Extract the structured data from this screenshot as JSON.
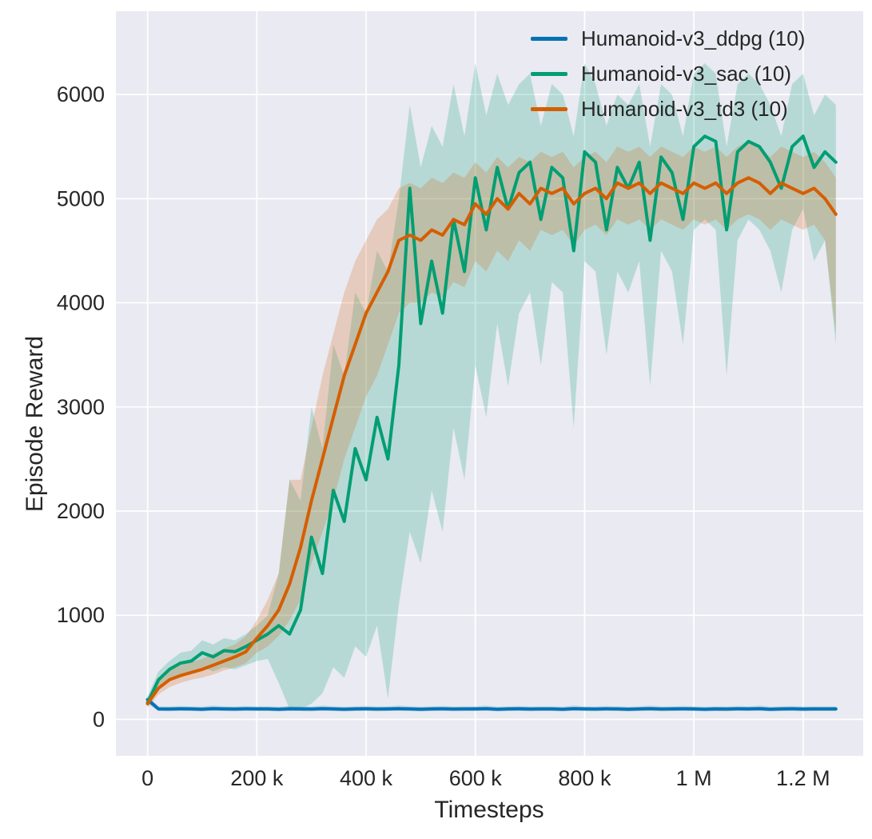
{
  "chart_data": {
    "type": "line",
    "title": "",
    "xlabel": "Timesteps",
    "ylabel": "Episode Reward",
    "xlim": [
      -58000,
      1310000
    ],
    "ylim": [
      -350,
      6800
    ],
    "background": "#eaeaf2",
    "grid_color": "#ffffff",
    "text_color": "#262626",
    "grid": true,
    "legend_position": "upper right",
    "xticks": {
      "values": [
        0,
        200000,
        400000,
        600000,
        800000,
        1000000,
        1200000
      ],
      "labels": [
        "0",
        "200 k",
        "400 k",
        "600 k",
        "800 k",
        "1 M",
        "1.2 M"
      ]
    },
    "yticks": {
      "values": [
        0,
        1000,
        2000,
        3000,
        4000,
        5000,
        6000
      ],
      "labels": [
        "0",
        "1000",
        "2000",
        "3000",
        "4000",
        "5000",
        "6000"
      ]
    },
    "x": [
      0,
      20000,
      40000,
      60000,
      80000,
      100000,
      120000,
      140000,
      160000,
      180000,
      200000,
      220000,
      240000,
      260000,
      280000,
      300000,
      320000,
      340000,
      360000,
      380000,
      400000,
      420000,
      440000,
      460000,
      480000,
      500000,
      520000,
      540000,
      560000,
      580000,
      600000,
      620000,
      640000,
      660000,
      680000,
      700000,
      720000,
      740000,
      760000,
      780000,
      800000,
      820000,
      840000,
      860000,
      880000,
      900000,
      920000,
      940000,
      960000,
      980000,
      1000000,
      1020000,
      1040000,
      1060000,
      1080000,
      1100000,
      1120000,
      1140000,
      1160000,
      1180000,
      1200000,
      1220000,
      1240000,
      1260000
    ],
    "series": [
      {
        "key": "ddpg",
        "label": "Humanoid-v3_ddpg (10)",
        "color": "#0173b2",
        "mean": [
          190,
          100,
          99,
          101,
          100,
          98,
          102,
          100,
          99,
          101,
          100,
          100,
          98,
          101,
          100,
          99,
          102,
          100,
          98,
          100,
          101,
          99,
          100,
          102,
          100,
          98,
          100,
          101,
          99,
          100,
          100,
          102,
          98,
          100,
          101,
          99,
          100,
          100,
          98,
          102,
          100,
          99,
          101,
          100,
          98,
          100,
          102,
          99,
          100,
          101,
          100,
          98,
          100,
          99,
          101,
          100,
          102,
          98,
          100,
          101,
          99,
          100,
          100,
          100
        ],
        "lo": [
          150,
          80,
          78,
          82,
          80,
          76,
          84,
          80,
          78,
          82,
          80,
          80,
          76,
          82,
          80,
          78,
          84,
          80,
          76,
          80,
          82,
          78,
          80,
          84,
          80,
          76,
          80,
          82,
          78,
          80,
          80,
          84,
          76,
          80,
          82,
          78,
          80,
          80,
          76,
          84,
          80,
          78,
          82,
          80,
          76,
          80,
          84,
          78,
          80,
          82,
          80,
          76,
          80,
          78,
          82,
          80,
          84,
          76,
          80,
          82,
          78,
          80,
          80,
          80
        ],
        "hi": [
          230,
          125,
          122,
          128,
          125,
          120,
          132,
          125,
          122,
          128,
          125,
          125,
          120,
          128,
          125,
          122,
          132,
          125,
          120,
          125,
          128,
          122,
          125,
          132,
          125,
          120,
          125,
          128,
          122,
          125,
          125,
          132,
          120,
          125,
          128,
          122,
          125,
          125,
          120,
          132,
          125,
          122,
          128,
          125,
          120,
          125,
          132,
          122,
          125,
          128,
          125,
          120,
          125,
          122,
          128,
          125,
          132,
          120,
          125,
          128,
          122,
          125,
          125,
          125
        ]
      },
      {
        "key": "sac",
        "label": "Humanoid-v3_sac (10)",
        "color": "#029e73",
        "mean": [
          160,
          380,
          480,
          540,
          560,
          640,
          600,
          660,
          650,
          700,
          760,
          820,
          900,
          820,
          1050,
          1750,
          1400,
          2200,
          1900,
          2600,
          2300,
          2900,
          2500,
          3400,
          5100,
          3800,
          4400,
          3900,
          4800,
          4300,
          5200,
          4700,
          5300,
          4900,
          5250,
          5350,
          4800,
          5300,
          5200,
          4500,
          5450,
          5350,
          4700,
          5300,
          5100,
          5350,
          4600,
          5400,
          5250,
          4800,
          5500,
          5600,
          5550,
          4700,
          5450,
          5550,
          5500,
          5350,
          5100,
          5500,
          5600,
          5300,
          5450,
          5350
        ],
        "lo": [
          120,
          300,
          380,
          420,
          440,
          500,
          460,
          500,
          480,
          520,
          560,
          580,
          350,
          100,
          100,
          150,
          250,
          500,
          400,
          700,
          600,
          900,
          200,
          1100,
          1800,
          1500,
          2200,
          1800,
          2800,
          2300,
          3400,
          2900,
          3800,
          3200,
          3900,
          4100,
          3400,
          4200,
          4100,
          2800,
          4400,
          4300,
          3500,
          4300,
          4100,
          4400,
          3200,
          4500,
          4300,
          3600,
          4700,
          4800,
          4700,
          3300,
          4600,
          4800,
          4700,
          4500,
          4100,
          4700,
          4900,
          4400,
          4600,
          3600
        ],
        "hi": [
          220,
          460,
          560,
          640,
          660,
          760,
          720,
          780,
          760,
          820,
          900,
          1000,
          1400,
          2300,
          2100,
          3000,
          2600,
          3600,
          3300,
          4100,
          3900,
          4500,
          4300,
          5000,
          5900,
          5300,
          5700,
          5500,
          6100,
          5600,
          6300,
          5800,
          6200,
          5900,
          6100,
          6200,
          5700,
          6100,
          6000,
          5600,
          6300,
          6100,
          5700,
          6000,
          5900,
          6100,
          5500,
          6100,
          6000,
          5600,
          6200,
          6300,
          6200,
          5500,
          6100,
          6200,
          6100,
          5900,
          5600,
          6100,
          6200,
          5800,
          6000,
          5900
        ]
      },
      {
        "key": "td3",
        "label": "Humanoid-v3_td3 (10)",
        "color": "#d55e00",
        "mean": [
          150,
          300,
          380,
          420,
          450,
          480,
          520,
          560,
          600,
          650,
          780,
          900,
          1050,
          1300,
          1650,
          2100,
          2500,
          2900,
          3300,
          3600,
          3900,
          4100,
          4300,
          4600,
          4650,
          4600,
          4700,
          4650,
          4800,
          4750,
          4950,
          4850,
          5000,
          4900,
          5050,
          4950,
          5100,
          5050,
          5100,
          4950,
          5050,
          5100,
          5000,
          5150,
          5100,
          5150,
          5050,
          5150,
          5100,
          5050,
          5150,
          5100,
          5150,
          5050,
          5150,
          5200,
          5150,
          5050,
          5150,
          5100,
          5050,
          5100,
          5000,
          4850
        ],
        "lo": [
          110,
          240,
          310,
          350,
          380,
          400,
          430,
          470,
          500,
          540,
          640,
          700,
          800,
          950,
          1150,
          1500,
          1800,
          2100,
          2500,
          2800,
          3100,
          3300,
          3600,
          3900,
          4000,
          4000,
          4100,
          4050,
          4200,
          4150,
          4400,
          4300,
          4500,
          4400,
          4600,
          4500,
          4700,
          4650,
          4700,
          4550,
          4700,
          4750,
          4650,
          4800,
          4750,
          4800,
          4700,
          4800,
          4750,
          4700,
          4800,
          4750,
          4800,
          4700,
          4800,
          4850,
          4800,
          4700,
          4800,
          4750,
          4700,
          4750,
          4600,
          3700
        ],
        "hi": [
          200,
          380,
          470,
          520,
          550,
          580,
          630,
          680,
          720,
          800,
          950,
          1150,
          1400,
          2300,
          2300,
          2800,
          3300,
          3700,
          4100,
          4400,
          4600,
          4800,
          4900,
          5100,
          5150,
          5100,
          5200,
          5150,
          5250,
          5200,
          5350,
          5250,
          5400,
          5300,
          5400,
          5350,
          5450,
          5400,
          5450,
          5300,
          5400,
          5450,
          5350,
          5500,
          5450,
          5500,
          5400,
          5500,
          5450,
          5400,
          5500,
          5450,
          5500,
          5400,
          5500,
          5550,
          5500,
          5400,
          5500,
          5450,
          5400,
          5450,
          5350,
          5200
        ]
      }
    ]
  }
}
